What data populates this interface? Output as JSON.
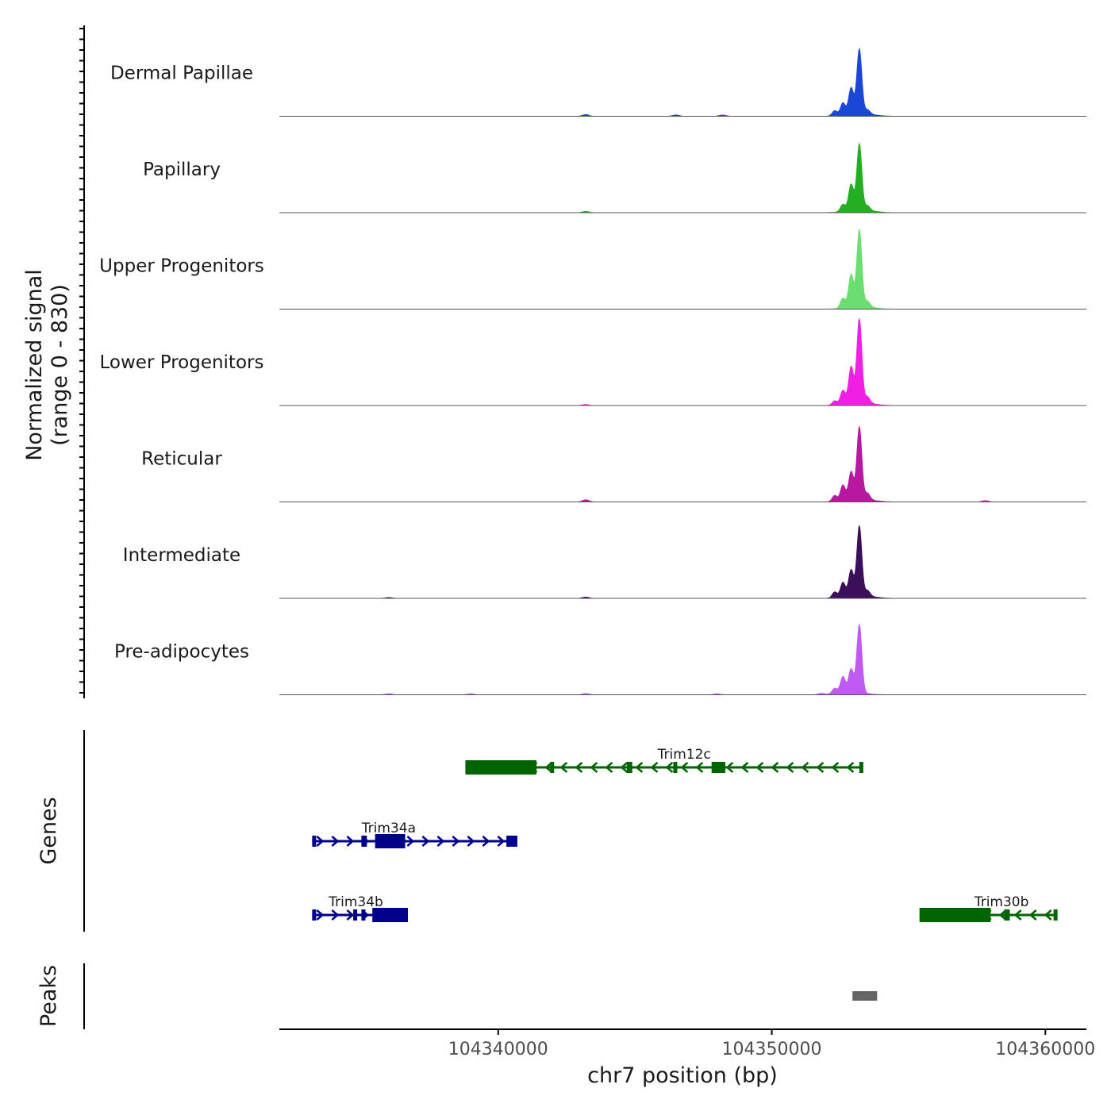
{
  "chart_data": {
    "type": "area",
    "title": "",
    "ylabel_line1": "Normalized signal",
    "ylabel_line2": "(range 0 - 830)",
    "y_range": [
      0,
      830
    ],
    "xlabel": "chr7 position (bp)",
    "xlim": [
      104332000,
      104361500
    ],
    "x_ticks": [
      104340000,
      104350000,
      104360000
    ],
    "x_tick_labels": [
      "104340000",
      "104350000",
      "104360000"
    ],
    "tracks": [
      {
        "name": "Dermal Papillae",
        "color": "#1a47d6",
        "peaks": [
          [
            104352300,
            60
          ],
          [
            104352600,
            140
          ],
          [
            104352900,
            300
          ],
          [
            104353200,
            740
          ],
          [
            104353500,
            45
          ]
        ],
        "noise": [
          [
            104343200,
            20
          ],
          [
            104346500,
            15
          ],
          [
            104348200,
            15
          ]
        ]
      },
      {
        "name": "Papillary",
        "color": "#22b022",
        "peaks": [
          [
            104352600,
            80
          ],
          [
            104352900,
            300
          ],
          [
            104353200,
            760
          ],
          [
            104353500,
            50
          ]
        ],
        "noise": [
          [
            104343200,
            15
          ]
        ]
      },
      {
        "name": "Upper Progenitors",
        "color": "#6cdd70",
        "peaks": [
          [
            104352600,
            110
          ],
          [
            104352900,
            370
          ],
          [
            104353200,
            880
          ],
          [
            104353500,
            60
          ]
        ],
        "noise": []
      },
      {
        "name": "Lower Progenitors",
        "color": "#ef20e4",
        "peaks": [
          [
            104352300,
            50
          ],
          [
            104352600,
            160
          ],
          [
            104352900,
            420
          ],
          [
            104353200,
            970
          ],
          [
            104353500,
            70
          ]
        ],
        "noise": [
          [
            104343200,
            12
          ]
        ]
      },
      {
        "name": "Reticular",
        "color": "#b7189f",
        "peaks": [
          [
            104352300,
            70
          ],
          [
            104352600,
            180
          ],
          [
            104352900,
            320
          ],
          [
            104353200,
            830
          ],
          [
            104353500,
            70
          ]
        ],
        "noise": [
          [
            104343200,
            25
          ],
          [
            104357800,
            15
          ]
        ]
      },
      {
        "name": "Intermediate",
        "color": "#3b0f5a",
        "peaks": [
          [
            104352300,
            70
          ],
          [
            104352600,
            170
          ],
          [
            104352900,
            300
          ],
          [
            104353200,
            800
          ],
          [
            104353500,
            60
          ]
        ],
        "noise": [
          [
            104343200,
            15
          ],
          [
            104336000,
            10
          ]
        ]
      },
      {
        "name": "Pre-adipocytes",
        "color": "#bf5af2",
        "peaks": [
          [
            104352300,
            60
          ],
          [
            104352600,
            180
          ],
          [
            104352900,
            260
          ],
          [
            104353200,
            780
          ]
        ],
        "noise": [
          [
            104336000,
            12
          ],
          [
            104339000,
            12
          ],
          [
            104343200,
            15
          ],
          [
            104348000,
            12
          ],
          [
            104351800,
            15
          ]
        ]
      }
    ],
    "genes_label": "Genes",
    "genes": [
      {
        "name": "Trim12c",
        "strand": "-",
        "color": "#006400",
        "row": 0,
        "label_x": 104346800,
        "start": 104338800,
        "end": 104353300,
        "exons": [
          [
            104338800,
            104341400
          ],
          [
            104341900,
            104342000
          ],
          [
            104344700,
            104344900
          ],
          [
            104346400,
            104346500
          ],
          [
            104347800,
            104348300
          ],
          [
            104353200,
            104353300
          ]
        ]
      },
      {
        "name": "Trim34a",
        "strand": "+",
        "color": "#00008b",
        "row": 1,
        "label_x": 104336000,
        "start": 104333200,
        "end": 104340700,
        "exons": [
          [
            104333200,
            104333300
          ],
          [
            104335000,
            104335200
          ],
          [
            104335500,
            104336600
          ],
          [
            104340300,
            104340700
          ]
        ]
      },
      {
        "name": "Trim34b",
        "strand": "+",
        "color": "#00008b",
        "row": 2,
        "label_x": 104334800,
        "start": 104333200,
        "end": 104336700,
        "exons": [
          [
            104333200,
            104333300
          ],
          [
            104334700,
            104334800
          ],
          [
            104335000,
            104335100
          ],
          [
            104335400,
            104336700
          ]
        ]
      },
      {
        "name": "Trim30b",
        "strand": "-",
        "color": "#006400",
        "row": 2,
        "label_x": 104358400,
        "start": 104355400,
        "end": 104360400,
        "exons": [
          [
            104355400,
            104358000
          ],
          [
            104358500,
            104358700
          ],
          [
            104360300,
            104360400
          ]
        ]
      }
    ],
    "peaks_label": "Peaks",
    "peak_regions": [
      {
        "start": 104352950,
        "end": 104353850,
        "color": "#666666"
      }
    ]
  }
}
